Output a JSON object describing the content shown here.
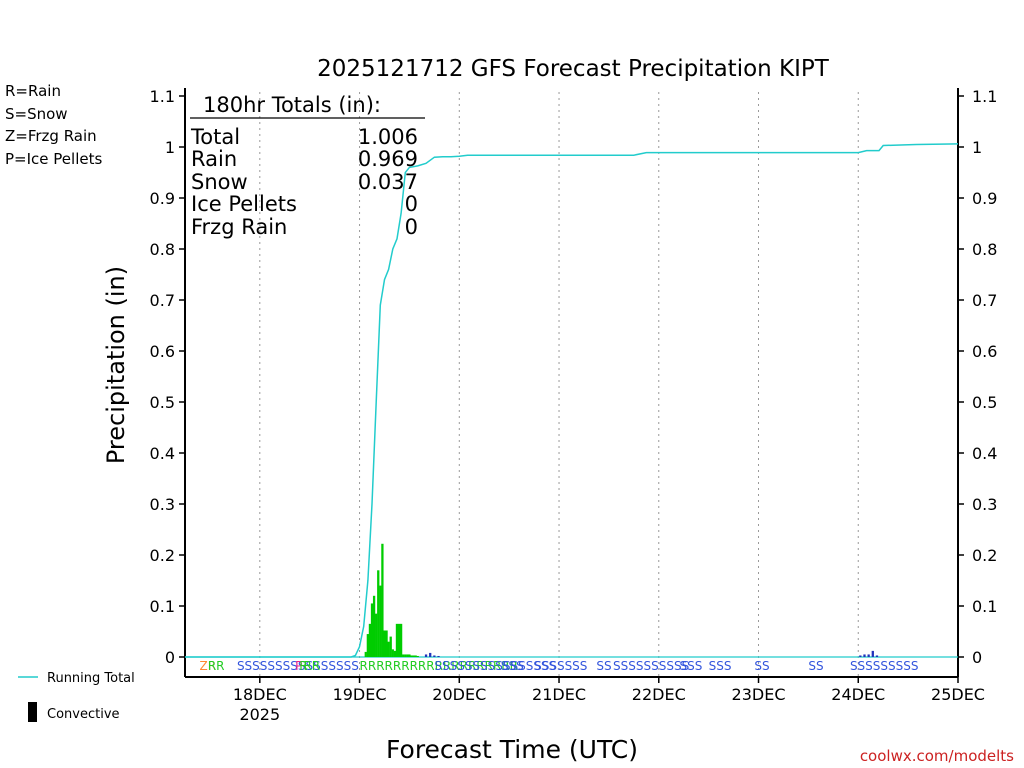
{
  "chart_data": {
    "type": "bar",
    "title": "2025121712 GFS Forecast Precipitation KIPT",
    "xlabel": "Forecast Time (UTC)",
    "ylabel": "Precipitation (in)",
    "ylim": [
      0,
      1.1
    ],
    "y_ticks": [
      "0",
      "0.1",
      "0.2",
      "0.3",
      "0.4",
      "0.5",
      "0.6",
      "0.7",
      "0.8",
      "0.9",
      "1",
      "1.1"
    ],
    "x_range_hours": [
      -6,
      180
    ],
    "x_ticks": [
      {
        "label": "18DEC",
        "sublabel": "2025",
        "hour": 12
      },
      {
        "label": "19DEC",
        "sublabel": "",
        "hour": 36
      },
      {
        "label": "20DEC",
        "sublabel": "",
        "hour": 60
      },
      {
        "label": "21DEC",
        "sublabel": "",
        "hour": 84
      },
      {
        "label": "22DEC",
        "sublabel": "",
        "hour": 108
      },
      {
        "label": "23DEC",
        "sublabel": "",
        "hour": 132
      },
      {
        "label": "24DEC",
        "sublabel": "",
        "hour": 156
      },
      {
        "label": "25DEC",
        "sublabel": "",
        "hour": 180
      }
    ],
    "legend_types": [
      {
        "text": "R=Rain",
        "color": "#22cc22"
      },
      {
        "text": "S=Snow",
        "color": "#3355dd"
      },
      {
        "text": "Z=Frzg Rain",
        "color": "#ff8833"
      },
      {
        "text": "P=Ice Pellets",
        "color": "#ee2288"
      }
    ],
    "legend_series": [
      {
        "text": "Running Total",
        "color": "#22cccc"
      },
      {
        "text": "Convective",
        "color": "#000000"
      }
    ],
    "totals": {
      "header": "180hr Totals (in):",
      "rows": [
        {
          "label": "Total",
          "value": "1.006"
        },
        {
          "label": "Rain",
          "value": "0.969"
        },
        {
          "label": "Snow",
          "value": "0.037"
        },
        {
          "label": "Ice Pellets",
          "value": "0"
        },
        {
          "label": "Frzg Rain",
          "value": "0"
        }
      ]
    },
    "running_total": {
      "name": "Running Total",
      "hours": [
        -6,
        34,
        35,
        36,
        37,
        38,
        39,
        40,
        41,
        42,
        43,
        44,
        45,
        46,
        47,
        48,
        50,
        52,
        54,
        56,
        58,
        60,
        62,
        72,
        84,
        96,
        102,
        105,
        108,
        120,
        132,
        144,
        156,
        158,
        159,
        161,
        162,
        170,
        180
      ],
      "values": [
        0,
        0,
        0.003,
        0.02,
        0.06,
        0.15,
        0.3,
        0.5,
        0.69,
        0.74,
        0.76,
        0.8,
        0.82,
        0.87,
        0.95,
        0.96,
        0.963,
        0.968,
        0.98,
        0.981,
        0.981,
        0.982,
        0.984,
        0.984,
        0.984,
        0.984,
        0.984,
        0.989,
        0.989,
        0.989,
        0.989,
        0.989,
        0.989,
        0.993,
        0.993,
        0.993,
        1.003,
        1.005,
        1.006
      ]
    },
    "series": [
      {
        "name": "Rain",
        "color": "#00cc00",
        "hours": [
          37.5,
          38,
          38.5,
          39,
          39.5,
          40,
          40.5,
          41,
          41.5,
          42,
          42.5,
          43,
          43.5,
          44,
          44.5,
          45,
          45.5,
          46,
          46.5,
          47,
          47.5,
          48,
          48.5,
          49,
          49.5,
          50
        ],
        "values": [
          0.01,
          0.045,
          0.065,
          0.105,
          0.12,
          0.085,
          0.17,
          0.14,
          0.222,
          0.052,
          0.052,
          0.03,
          0.04,
          0.015,
          0.012,
          0.065,
          0.065,
          0.065,
          0.005,
          0.005,
          0.005,
          0.005,
          0.003,
          0.003,
          0.003,
          0.002
        ]
      },
      {
        "name": "Snow",
        "color": "#2233bb",
        "hours": [
          52,
          53,
          54,
          55,
          156.5,
          157.5,
          158.5,
          159.5,
          160.5
        ],
        "values": [
          0.005,
          0.008,
          0.003,
          0.002,
          0.003,
          0.005,
          0.005,
          0.012,
          0.003
        ]
      }
    ],
    "ptype_markers": [
      {
        "text": "ZR",
        "color": "#ff8833",
        "hour": -2.5
      },
      {
        "text": "RR",
        "color": "#22cc22",
        "hour": -0.5
      },
      {
        "text": "SSSSSSSSSSSSSSSS",
        "color": "#3355dd",
        "hour": 6.5
      },
      {
        "text": "P",
        "color": "#ee2288",
        "hour": 20.5
      },
      {
        "text": "R",
        "color": "#22cc22",
        "hour": 21.5
      },
      {
        "text": "RR",
        "color": "#22cc22",
        "hour": 22.5
      },
      {
        "text": "RRRRRRRRRRRRRRRRRRR",
        "color": "#22cc22",
        "hour": 36
      },
      {
        "text": "SSSSSSSSSSSSSSSS",
        "color": "#3355dd",
        "hour": 54
      },
      {
        "text": "SSS",
        "color": "#3355dd",
        "hour": 70
      },
      {
        "text": "SSSSSSS",
        "color": "#3355dd",
        "hour": 78
      },
      {
        "text": "SS",
        "color": "#3355dd",
        "hour": 93
      },
      {
        "text": "SSSSSSSSSS",
        "color": "#3355dd",
        "hour": 97
      },
      {
        "text": "SSS",
        "color": "#3355dd",
        "hour": 113
      },
      {
        "text": "SSS",
        "color": "#3355dd",
        "hour": 120
      },
      {
        "text": "SS",
        "color": "#3355dd",
        "hour": 131
      },
      {
        "text": "SS",
        "color": "#3355dd",
        "hour": 144
      },
      {
        "text": "SSSSSSSSS",
        "color": "#3355dd",
        "hour": 154
      }
    ],
    "credit": "coolwx.com/modelts",
    "grid": "vertical dotted at day boundaries"
  }
}
